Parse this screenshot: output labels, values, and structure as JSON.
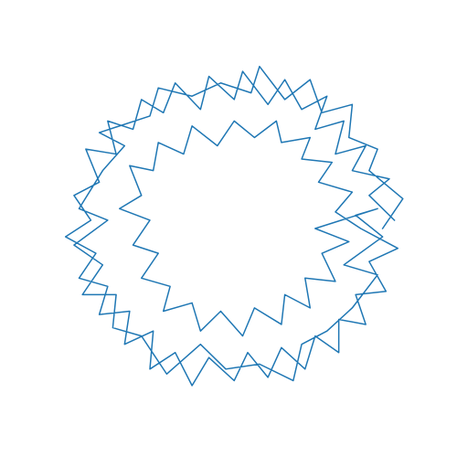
{
  "chart_data": {
    "type": "line",
    "color": "#1f77b4",
    "grid": false,
    "axis": "off",
    "xlim": [
      -105,
      105
    ],
    "ylim": [
      -105,
      105
    ],
    "series": [
      {
        "color": "#1f77b4",
        "x": [
          95,
          80,
          92,
          70,
          78,
          60,
          65,
          48,
          55,
          40,
          30,
          20,
          5,
          0,
          -15,
          -20,
          -35,
          -42,
          -55,
          -60,
          -75,
          -70,
          -88,
          -80,
          -95,
          -85,
          -100,
          -82,
          -92,
          -75,
          -80,
          -62,
          -65,
          -48,
          -50,
          -35,
          -25,
          -15,
          0,
          8,
          20,
          28,
          42,
          48,
          62,
          62,
          78,
          72,
          90,
          80,
          97,
          75,
          60,
          70,
          50,
          58,
          40,
          45,
          28,
          25,
          12,
          0,
          -10,
          -25,
          -30,
          -45,
          -48,
          -62,
          -55,
          -68,
          -50,
          -60,
          -45,
          -55,
          -38,
          -42,
          -25,
          -20,
          -8,
          5,
          12,
          28,
          30,
          45,
          42,
          60,
          52,
          68,
          48,
          85,
          72,
          88,
          65,
          85,
          70,
          55,
          40,
          35,
          15,
          -5,
          -20,
          -40,
          -55,
          -72,
          -70,
          -90,
          -78,
          -95,
          -75,
          -92,
          -78,
          -65,
          -80,
          -50,
          -45,
          -25,
          -8,
          10,
          15,
          30,
          45,
          52,
          70,
          68,
          85,
          80,
          100,
          88
        ],
        "values": [
          5,
          20,
          30,
          35,
          50,
          45,
          65,
          60,
          80,
          72,
          90,
          75,
          95,
          78,
          92,
          72,
          88,
          70,
          78,
          60,
          65,
          45,
          48,
          28,
          20,
          5,
          -5,
          -15,
          -30,
          -35,
          -52,
          -50,
          -70,
          -62,
          -85,
          -75,
          -95,
          -78,
          -92,
          -75,
          -90,
          -72,
          -85,
          -65,
          -75,
          -55,
          -58,
          -40,
          -38,
          -20,
          -12,
          0,
          10,
          22,
          28,
          40,
          42,
          55,
          52,
          65,
          55,
          65,
          50,
          62,
          45,
          52,
          35,
          38,
          20,
          12,
          5,
          -10,
          -15,
          -30,
          -35,
          -50,
          -45,
          -62,
          -50,
          -65,
          -48,
          -58,
          -40,
          -48,
          -30,
          -32,
          -15,
          -8,
          0,
          12,
          8,
          -5,
          -22,
          -28,
          -48,
          -62,
          -70,
          -92,
          -82,
          -85,
          -70,
          -88,
          -65,
          -60,
          -40,
          -40,
          -22,
          -10,
          5,
          12,
          35,
          50,
          58,
          68,
          85,
          80,
          88,
          82,
          98,
          78,
          90,
          70,
          75,
          55,
          48,
          35,
          18,
          0
        ]
      }
    ]
  }
}
